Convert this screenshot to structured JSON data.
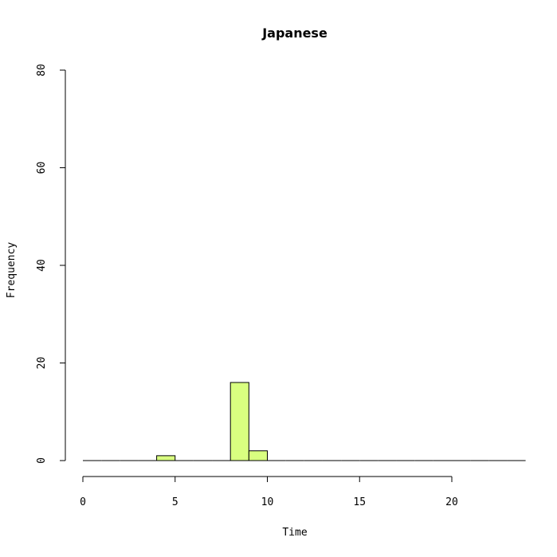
{
  "chart_data": {
    "type": "bar",
    "title": "Japanese",
    "xlabel": "Time",
    "ylabel": "Frequency",
    "xlim": [
      0,
      24
    ],
    "ylim": [
      0,
      80
    ],
    "x_ticks": [
      0,
      5,
      10,
      15,
      20
    ],
    "y_ticks": [
      0,
      20,
      40,
      60,
      80
    ],
    "bin_width": 1,
    "bins": [
      {
        "start": 0,
        "count": 0
      },
      {
        "start": 1,
        "count": 0
      },
      {
        "start": 2,
        "count": 0
      },
      {
        "start": 3,
        "count": 0
      },
      {
        "start": 4,
        "count": 1
      },
      {
        "start": 5,
        "count": 0
      },
      {
        "start": 6,
        "count": 0
      },
      {
        "start": 7,
        "count": 0
      },
      {
        "start": 8,
        "count": 16
      },
      {
        "start": 9,
        "count": 2
      },
      {
        "start": 10,
        "count": 0
      },
      {
        "start": 11,
        "count": 0
      },
      {
        "start": 12,
        "count": 0
      },
      {
        "start": 13,
        "count": 0
      },
      {
        "start": 14,
        "count": 0
      },
      {
        "start": 15,
        "count": 0
      },
      {
        "start": 16,
        "count": 0
      },
      {
        "start": 17,
        "count": 0
      },
      {
        "start": 18,
        "count": 0
      },
      {
        "start": 19,
        "count": 0
      },
      {
        "start": 20,
        "count": 0
      },
      {
        "start": 21,
        "count": 0
      },
      {
        "start": 22,
        "count": 0
      },
      {
        "start": 23,
        "count": 0
      }
    ],
    "grid": false,
    "bar_color": "#d9ff80",
    "border_color": "#000000"
  }
}
